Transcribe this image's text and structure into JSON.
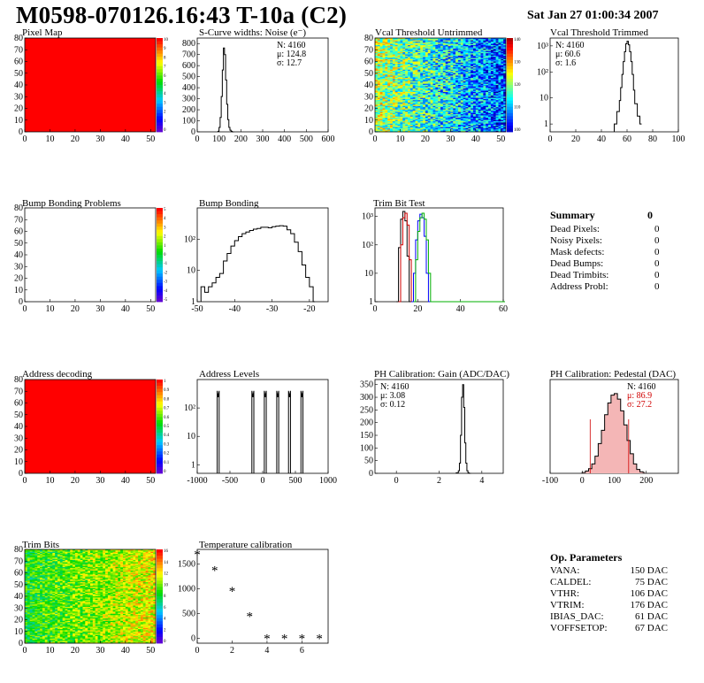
{
  "title": "M0598-070126.16:43 T-10a (C2)",
  "date": "Sat Jan 27 01:00:34 2007",
  "colors": {
    "pixel_red": "#ff0000",
    "series_black": "#000000",
    "series_red": "#d00000",
    "series_blue": "#0000ff",
    "series_green": "#00b000"
  },
  "chart_data": [
    {
      "id": "pixel-map",
      "type": "heatmap",
      "title": "Pixel Map",
      "xlim": [
        0,
        52
      ],
      "ylim": [
        0,
        80
      ],
      "x_ticks": [
        "0",
        "10",
        "20",
        "30",
        "40",
        "50"
      ],
      "y_ticks": [
        "0",
        "10",
        "20",
        "30",
        "40",
        "50",
        "60",
        "70",
        "80"
      ],
      "fill": "uniform",
      "colorbar_ticks": [
        "10",
        "9",
        "8",
        "7",
        "6",
        "5",
        "4",
        "3",
        "2",
        "1",
        "0"
      ]
    },
    {
      "id": "scurve-widths",
      "type": "histogram",
      "title": "S-Curve widths: Noise (e⁻)",
      "xlim": [
        0,
        600
      ],
      "ylim": [
        0,
        850
      ],
      "log": false,
      "x_ticks": [
        "0",
        "100",
        "200",
        "300",
        "400",
        "500",
        "600"
      ],
      "y_ticks": [
        "0",
        "100",
        "200",
        "300",
        "400",
        "500",
        "600",
        "700",
        "800"
      ],
      "stats": [
        "N: 4160",
        "μ: 124.8",
        "σ: 12.7"
      ],
      "series": [
        {
          "x": [
            95,
            100,
            105,
            110,
            115,
            120,
            125,
            130,
            135,
            140,
            145,
            150,
            155,
            160
          ],
          "y": [
            5,
            40,
            130,
            320,
            560,
            760,
            700,
            470,
            250,
            110,
            40,
            15,
            5,
            0
          ]
        }
      ]
    },
    {
      "id": "vcal-untrimmed",
      "type": "heatmap",
      "title": "Vcal Threshold Untrimmed",
      "xlim": [
        0,
        52
      ],
      "ylim": [
        0,
        80
      ],
      "x_ticks": [
        "0",
        "10",
        "20",
        "30",
        "40",
        "50"
      ],
      "y_ticks": [
        "0",
        "10",
        "20",
        "30",
        "40",
        "50",
        "60",
        "70",
        "80"
      ],
      "fill": "noise-gradient",
      "colorbar_ticks": [
        "140",
        "130",
        "120",
        "110",
        "100"
      ]
    },
    {
      "id": "vcal-trimmed",
      "type": "histogram",
      "title": "Vcal Threshold Trimmed",
      "xlim": [
        0,
        100
      ],
      "ylim": [
        0.5,
        2000
      ],
      "log": true,
      "x_ticks": [
        "0",
        "20",
        "40",
        "60",
        "80",
        "100"
      ],
      "y_ticks": [
        "1",
        "10",
        "10²",
        "10³"
      ],
      "stats": [
        "N: 4160",
        "μ: 60.6",
        "σ:  1.6"
      ],
      "series": [
        {
          "x": [
            50,
            52,
            54,
            55,
            56,
            57,
            58,
            59,
            60,
            61,
            62,
            63,
            64,
            65,
            66,
            68,
            70
          ],
          "y": [
            1,
            3,
            8,
            25,
            80,
            250,
            600,
            1200,
            1500,
            1100,
            600,
            250,
            80,
            20,
            6,
            2,
            1
          ]
        }
      ]
    },
    {
      "id": "bump-bonding-problems",
      "type": "heatmap",
      "title": "Bump Bonding Problems",
      "xlim": [
        0,
        52
      ],
      "ylim": [
        0,
        80
      ],
      "x_ticks": [
        "0",
        "10",
        "20",
        "30",
        "40",
        "50"
      ],
      "y_ticks": [
        "0",
        "10",
        "20",
        "30",
        "40",
        "50",
        "60",
        "70",
        "80"
      ],
      "fill": "empty",
      "colorbar_ticks": [
        "5",
        "4",
        "3",
        "2",
        "1",
        "0",
        "-1",
        "-2",
        "-3",
        "-4",
        "-5"
      ]
    },
    {
      "id": "bump-bonding",
      "type": "histogram",
      "title": "Bump Bonding",
      "xlim": [
        -50,
        -15
      ],
      "ylim": [
        1,
        1000
      ],
      "log": true,
      "x_ticks": [
        "-50",
        "-40",
        "-30",
        "-20"
      ],
      "y_ticks": [
        "1",
        "10",
        "10²"
      ],
      "series": [
        {
          "x": [
            -49,
            -48,
            -47,
            -46,
            -45,
            -44,
            -43,
            -42,
            -41,
            -40,
            -39,
            -38,
            -37,
            -36,
            -35,
            -34,
            -33,
            -32,
            -31,
            -30,
            -29,
            -28,
            -27,
            -26,
            -25,
            -24,
            -23,
            -22,
            -21,
            -20,
            -19
          ],
          "y": [
            3,
            2,
            3,
            4,
            6,
            8,
            20,
            35,
            60,
            90,
            120,
            150,
            170,
            190,
            210,
            220,
            240,
            240,
            230,
            250,
            260,
            270,
            260,
            200,
            150,
            80,
            40,
            15,
            6,
            3,
            1
          ]
        }
      ]
    },
    {
      "id": "trim-bit-test",
      "type": "histogram",
      "title": "Trim Bit Test",
      "xlim": [
        0,
        60
      ],
      "ylim": [
        1,
        2000
      ],
      "log": true,
      "x_ticks": [
        "0",
        "20",
        "40",
        "60"
      ],
      "y_ticks": [
        "1",
        "10",
        "10²",
        "10³"
      ],
      "series": [
        {
          "color": "black",
          "x": [
            10,
            11,
            12,
            13,
            14,
            15,
            16
          ],
          "y": [
            1,
            80,
            800,
            1500,
            700,
            40,
            1
          ]
        },
        {
          "color": "red",
          "x": [
            11,
            12,
            13,
            14,
            15,
            16,
            17
          ],
          "y": [
            1,
            100,
            900,
            1300,
            500,
            30,
            1
          ]
        },
        {
          "color": "blue",
          "x": [
            17,
            18,
            19,
            20,
            21,
            22,
            23,
            24,
            25
          ],
          "y": [
            1,
            10,
            150,
            700,
            1200,
            900,
            200,
            10,
            1
          ]
        },
        {
          "color": "green",
          "x": [
            18,
            19,
            20,
            21,
            22,
            23,
            24,
            25,
            26,
            60
          ],
          "y": [
            1,
            30,
            300,
            900,
            1300,
            800,
            150,
            10,
            1,
            1
          ]
        }
      ]
    },
    {
      "id": "address-decoding",
      "type": "heatmap",
      "title": "Address decoding",
      "xlim": [
        0,
        52
      ],
      "ylim": [
        0,
        80
      ],
      "x_ticks": [
        "0",
        "10",
        "20",
        "30",
        "40",
        "50"
      ],
      "y_ticks": [
        "0",
        "10",
        "20",
        "30",
        "40",
        "50",
        "60",
        "70",
        "80"
      ],
      "fill": "uniform",
      "colorbar_ticks": [
        "1",
        "0.9",
        "0.8",
        "0.7",
        "0.6",
        "0.5",
        "0.4",
        "0.3",
        "0.2",
        "0.1",
        "0"
      ]
    },
    {
      "id": "address-levels",
      "type": "histogram",
      "title": "Address Levels",
      "xlim": [
        -1000,
        1000
      ],
      "ylim": [
        0.5,
        1000
      ],
      "log": true,
      "x_ticks": [
        "-1000",
        "-500",
        "0",
        "500",
        "1000"
      ],
      "y_ticks": [
        "1",
        "10",
        "10²"
      ],
      "peaks": [
        -680,
        -150,
        40,
        230,
        410,
        600
      ],
      "peak_height": 400
    },
    {
      "id": "ph-gain",
      "type": "histogram",
      "title": "PH Calibration: Gain (ADC/DAC)",
      "xlim": [
        -1,
        5
      ],
      "ylim": [
        0,
        370
      ],
      "log": false,
      "x_ticks": [
        "0",
        "2",
        "4"
      ],
      "y_ticks": [
        "0",
        "50",
        "100",
        "150",
        "200",
        "250",
        "300",
        "350"
      ],
      "stats": [
        "N: 4160",
        "μ: 3.08",
        "σ: 0.12"
      ],
      "series": [
        {
          "x": [
            2.8,
            2.9,
            2.95,
            3.0,
            3.05,
            3.1,
            3.15,
            3.2,
            3.25,
            3.3,
            3.35,
            3.4
          ],
          "y": [
            2,
            10,
            40,
            150,
            300,
            350,
            260,
            120,
            40,
            10,
            2,
            0
          ]
        }
      ]
    },
    {
      "id": "ph-pedestal",
      "type": "histogram",
      "title": "PH Calibration: Pedestal (DAC)",
      "xlim": [
        -100,
        300
      ],
      "ylim": [
        0,
        120
      ],
      "log": false,
      "x_ticks": [
        "-100",
        "0",
        "100",
        "200"
      ],
      "y_ticks": [],
      "stats": [
        "N: 4160",
        "μ: 86.9",
        "σ: 27.2"
      ],
      "fit_lines": [
        25,
        145
      ],
      "series": [
        {
          "x": [
            0,
            10,
            20,
            30,
            40,
            50,
            60,
            70,
            80,
            90,
            100,
            110,
            120,
            130,
            140,
            150,
            160,
            170,
            180,
            190
          ],
          "y": [
            1,
            3,
            6,
            12,
            22,
            38,
            55,
            75,
            90,
            100,
            102,
            95,
            80,
            62,
            42,
            25,
            12,
            5,
            2,
            1
          ]
        }
      ]
    },
    {
      "id": "trim-bits",
      "type": "heatmap",
      "title": "Trim Bits",
      "xlim": [
        0,
        52
      ],
      "ylim": [
        0,
        80
      ],
      "x_ticks": [
        "0",
        "10",
        "20",
        "30",
        "40",
        "50"
      ],
      "y_ticks": [
        "0",
        "10",
        "20",
        "30",
        "40",
        "50",
        "60",
        "70",
        "80"
      ],
      "fill": "trim-noise",
      "colorbar_ticks": [
        "16",
        "14",
        "12",
        "10",
        "8",
        "6",
        "4",
        "2",
        "0"
      ]
    },
    {
      "id": "temperature-calibration",
      "type": "scatter",
      "title": "Temperature calibration",
      "xlim": [
        0,
        7.5
      ],
      "ylim": [
        -100,
        1800
      ],
      "x_ticks": [
        "0",
        "2",
        "4",
        "6"
      ],
      "y_ticks": [
        "0",
        "500",
        "1000",
        "1500"
      ],
      "points": [
        [
          0,
          1700
        ],
        [
          1,
          1380
        ],
        [
          2,
          960
        ],
        [
          3,
          450
        ],
        [
          4,
          0
        ],
        [
          5,
          0
        ],
        [
          6,
          0
        ],
        [
          7,
          0
        ]
      ]
    }
  ],
  "summary": {
    "title": "Summary",
    "total": "0",
    "rows": [
      {
        "label": "Dead Pixels:",
        "value": "0"
      },
      {
        "label": "Noisy Pixels:",
        "value": "0"
      },
      {
        "label": "Mask defects:",
        "value": "0"
      },
      {
        "label": "Dead Bumps:",
        "value": "0"
      },
      {
        "label": "Dead Trimbits:",
        "value": "0"
      },
      {
        "label": "Address Probl:",
        "value": "0"
      }
    ]
  },
  "op_params": {
    "title": "Op. Parameters",
    "rows": [
      {
        "label": "VANA:",
        "value": "150 DAC"
      },
      {
        "label": "CALDEL:",
        "value": "75 DAC"
      },
      {
        "label": "VTHR:",
        "value": "106 DAC"
      },
      {
        "label": "VTRIM:",
        "value": "176 DAC"
      },
      {
        "label": "IBIAS_DAC:",
        "value": "61 DAC"
      },
      {
        "label": "VOFFSETOP:",
        "value": "67 DAC"
      }
    ]
  }
}
